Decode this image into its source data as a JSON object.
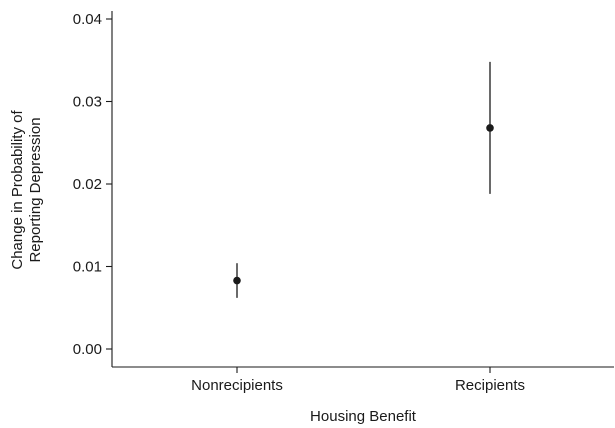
{
  "chart_data": {
    "type": "scatter",
    "title": "",
    "xlabel": "Housing Benefit",
    "ylabel": [
      "Change in Probability of",
      "Reporting Depression"
    ],
    "categories": [
      "Nonrecipients",
      "Recipients"
    ],
    "ylim": [
      0,
      0.04
    ],
    "yticks": [
      0.0,
      0.01,
      0.02,
      0.03,
      0.04
    ],
    "ytick_labels": [
      "0.00",
      "0.01",
      "0.02",
      "0.03",
      "0.04"
    ],
    "grid": false,
    "legend": "none",
    "points": [
      {
        "category": "Nonrecipients",
        "estimate": 0.0083,
        "lower": 0.0062,
        "upper": 0.0104
      },
      {
        "category": "Recipients",
        "estimate": 0.0268,
        "lower": 0.0188,
        "upper": 0.0348
      }
    ],
    "colors": {
      "marker": "#1a1a1a",
      "axis": "#1a1a1a"
    }
  }
}
